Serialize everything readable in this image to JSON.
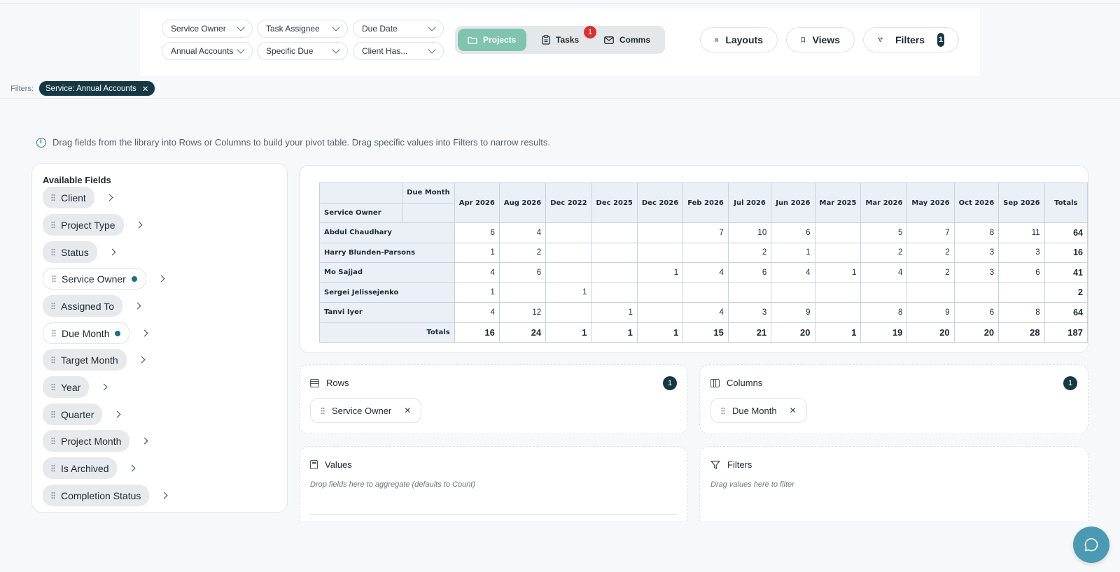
{
  "toolbar": {
    "dropdowns": [
      {
        "label": "Service Owner"
      },
      {
        "label": "Task Assignee"
      },
      {
        "label": "Due Date"
      },
      {
        "label": "Annual Accounts"
      },
      {
        "label": "Specific Due"
      },
      {
        "label": "Client Has..."
      }
    ],
    "segments": {
      "projects": "Projects",
      "tasks": "Tasks",
      "tasks_badge": "1",
      "comms": "Comms"
    },
    "layouts": "Layouts",
    "views": "Views",
    "filters": "Filters",
    "filters_count": "1"
  },
  "active_filters": {
    "label": "Filters:",
    "chips": [
      "Service: Annual Accounts"
    ]
  },
  "info_text": "Drag fields from the library into Rows or Columns to build your pivot table. Drag specific values into Filters to narrow results.",
  "fields_panel": {
    "title": "Available Fields",
    "fields": [
      {
        "label": "Client",
        "active": false
      },
      {
        "label": "Project Type",
        "active": false
      },
      {
        "label": "Status",
        "active": false
      },
      {
        "label": "Service Owner",
        "active": true
      },
      {
        "label": "Assigned To",
        "active": false
      },
      {
        "label": "Due Month",
        "active": true
      },
      {
        "label": "Target Month",
        "active": false
      },
      {
        "label": "Year",
        "active": false
      },
      {
        "label": "Quarter",
        "active": false
      },
      {
        "label": "Project Month",
        "active": false
      },
      {
        "label": "Is Archived",
        "active": false
      },
      {
        "label": "Completion Status",
        "active": false
      }
    ]
  },
  "pivot": {
    "col_axis_label": "Due Month",
    "row_axis_label": "Service Owner",
    "columns": [
      "Apr 2026",
      "Aug 2026",
      "Dec 2022",
      "Dec 2025",
      "Dec 2026",
      "Feb 2026",
      "Jul 2026",
      "Jun 2026",
      "Mar 2025",
      "Mar 2026",
      "May 2026",
      "Oct 2026",
      "Sep 2026",
      "Totals"
    ],
    "rows": [
      {
        "name": "Abdul Chaudhary",
        "values": [
          "6",
          "4",
          "",
          "",
          "",
          "7",
          "10",
          "6",
          "",
          "5",
          "7",
          "8",
          "11",
          "64"
        ]
      },
      {
        "name": "Harry Blunden-Parsons",
        "values": [
          "1",
          "2",
          "",
          "",
          "",
          "",
          "2",
          "1",
          "",
          "2",
          "2",
          "3",
          "3",
          "16"
        ]
      },
      {
        "name": "Mo Sajjad",
        "values": [
          "4",
          "6",
          "",
          "",
          "1",
          "4",
          "6",
          "4",
          "1",
          "4",
          "2",
          "3",
          "6",
          "41"
        ]
      },
      {
        "name": "Sergei Jelissejenko",
        "values": [
          "1",
          "",
          "1",
          "",
          "",
          "",
          "",
          "",
          "",
          "",
          "",
          "",
          "",
          "2"
        ]
      },
      {
        "name": "Tanvi Iyer",
        "values": [
          "4",
          "12",
          "",
          "1",
          "",
          "4",
          "3",
          "9",
          "",
          "8",
          "9",
          "6",
          "8",
          "64"
        ]
      }
    ],
    "totals_label": "Totals",
    "totals": [
      "16",
      "24",
      "1",
      "1",
      "1",
      "15",
      "21",
      "20",
      "1",
      "19",
      "20",
      "20",
      "28",
      "187"
    ]
  },
  "zones": {
    "rows": {
      "title": "Rows",
      "count": "1",
      "chip": "Service Owner"
    },
    "columns": {
      "title": "Columns",
      "count": "1",
      "chip": "Due Month"
    },
    "values": {
      "title": "Values",
      "hint": "Drop fields here to aggregate (defaults to Count)"
    },
    "filters": {
      "title": "Filters",
      "hint": "Drag values here to filter"
    }
  },
  "icons": [
    "chevron-down-icon",
    "folder-icon",
    "clipboard-icon",
    "mail-icon",
    "grid-icon",
    "bookmark-icon",
    "funnel-icon",
    "info-icon",
    "grip-icon",
    "chevron-right-icon",
    "rows-icon",
    "columns-icon",
    "calculator-icon",
    "close-icon",
    "chat-icon"
  ],
  "colors": {
    "accent_active": "#7fc4ae",
    "badge_dark": "#163845",
    "badge_red": "#d93030",
    "chat_button": "#4a9ab3"
  }
}
